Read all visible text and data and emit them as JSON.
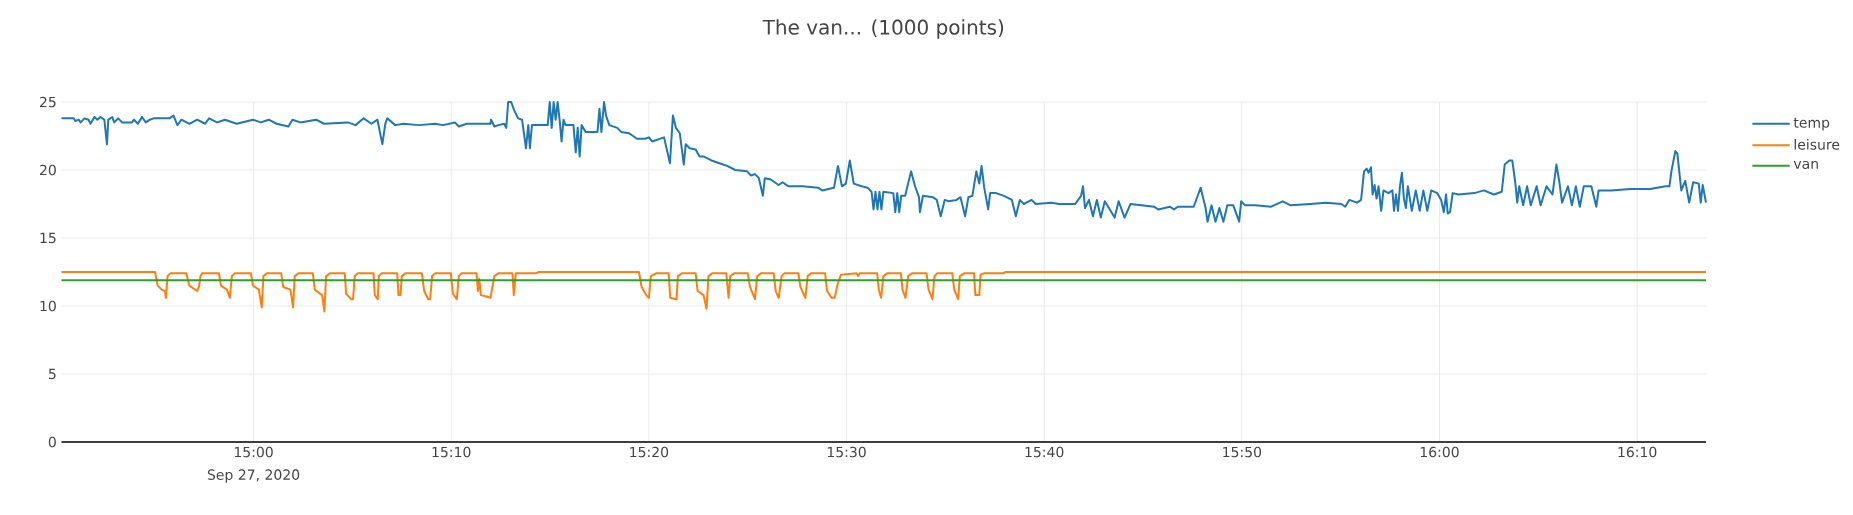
{
  "chart_data": {
    "type": "line",
    "title": "The van... (1000 points)",
    "annotations": [
      "Sep 27, 2020"
    ],
    "xlim": [
      "2020-09-27T14:50:17",
      "2020-09-27T16:13:29"
    ],
    "xticks": [
      {
        "value": "2020-09-27T15:00",
        "label": "15:00"
      },
      {
        "value": "2020-09-27T15:10",
        "label": "15:10"
      },
      {
        "value": "2020-09-27T15:20",
        "label": "15:20"
      },
      {
        "value": "2020-09-27T15:30",
        "label": "15:30"
      },
      {
        "value": "2020-09-27T15:40",
        "label": "15:40"
      },
      {
        "value": "2020-09-27T15:50",
        "label": "15:50"
      },
      {
        "value": "2020-09-27T16:00",
        "label": "16:00"
      },
      {
        "value": "2020-09-27T16:10",
        "label": "16:10"
      }
    ],
    "ylim": [
      0,
      25
    ],
    "yticks": [
      0,
      5,
      10,
      15,
      20,
      25
    ],
    "grid": true,
    "legend": "top right",
    "series": [
      {
        "name": "temp",
        "color": "#1f77b4",
        "x": [
          "2020-09-27T14:50:17",
          "2020-09-27T14:50:54",
          "2020-09-27T14:50:59",
          "2020-09-27T14:51:09",
          "2020-09-27T14:51:15",
          "2020-09-27T14:51:27",
          "2020-09-27T14:51:39",
          "2020-09-27T14:51:45",
          "2020-09-27T14:51:57",
          "2020-09-27T14:52:06",
          "2020-09-27T14:52:15",
          "2020-09-27T14:52:27",
          "2020-09-27T14:52:35",
          "2020-09-27T14:52:39",
          "2020-09-27T14:52:51",
          "2020-09-27T14:52:57",
          "2020-09-27T14:53:09",
          "2020-09-27T14:53:21",
          "2020-09-27T14:53:51",
          "2020-09-27T14:53:57",
          "2020-09-27T14:54:09",
          "2020-09-27T14:54:21",
          "2020-09-27T14:54:33",
          "2020-09-27T14:54:45",
          "2020-09-27T14:54:57",
          "2020-09-27T14:55:45",
          "2020-09-27T14:55:57",
          "2020-09-27T14:56:09",
          "2020-09-27T14:56:21",
          "2020-09-27T14:56:45",
          "2020-09-27T14:57:09",
          "2020-09-27T14:57:33",
          "2020-09-27T14:57:45",
          "2020-09-27T14:58:09",
          "2020-09-27T14:58:33",
          "2020-09-27T14:59:09",
          "2020-09-27T14:59:58",
          "2020-09-27T15:00:22",
          "2020-09-27T15:00:46",
          "2020-09-27T15:01:10",
          "2020-09-27T15:01:46",
          "2020-09-27T15:01:58",
          "2020-09-27T15:02:22",
          "2020-09-27T15:03:10",
          "2020-09-27T15:03:34",
          "2020-09-27T15:04:46",
          "2020-09-27T15:05:10",
          "2020-09-27T15:05:34",
          "2020-09-27T15:05:58",
          "2020-09-27T15:06:16",
          "2020-09-27T15:06:31",
          "2020-09-27T15:06:40",
          "2020-09-27T15:06:46",
          "2020-09-27T15:07:10",
          "2020-09-27T15:07:35",
          "2020-09-27T15:08:23",
          "2020-09-27T15:09:11",
          "2020-09-27T15:09:35",
          "2020-09-27T15:10:11",
          "2020-09-27T15:10:23",
          "2020-09-27T15:10:47",
          "2020-09-27T15:11:11",
          "2020-09-27T15:11:59",
          "2020-09-27T15:12:01",
          "2020-09-27T15:12:11",
          "2020-09-27T15:12:23",
          "2020-09-27T15:12:41",
          "2020-09-27T15:12:47",
          "2020-09-27T15:12:53",
          "2020-09-27T15:13:02",
          "2020-09-27T15:13:11",
          "2020-09-27T15:13:23",
          "2020-09-27T15:13:35",
          "2020-09-27T15:13:47",
          "2020-09-27T15:13:54",
          "2020-09-27T15:13:59",
          "2020-09-27T15:14:05",
          "2020-09-27T15:14:53",
          "2020-09-27T15:14:59",
          "2020-09-27T15:15:05",
          "2020-09-27T15:15:11",
          "2020-09-27T15:15:17",
          "2020-09-27T15:15:23",
          "2020-09-27T15:15:29",
          "2020-09-27T15:15:35",
          "2020-09-27T15:15:41",
          "2020-09-27T15:15:47",
          "2020-09-27T15:16:11",
          "2020-09-27T15:16:18",
          "2020-09-27T15:16:24",
          "2020-09-27T15:16:30",
          "2020-09-27T15:16:36",
          "2020-09-27T15:16:48",
          "2020-09-27T15:17:24",
          "2020-09-27T15:17:30",
          "2020-09-27T15:17:36",
          "2020-09-27T15:17:44",
          "2020-09-27T15:17:50",
          "2020-09-27T15:18:00",
          "2020-09-27T15:18:24",
          "2020-09-27T15:18:36",
          "2020-09-27T15:19:00",
          "2020-09-27T15:19:24",
          "2020-09-27T15:19:48",
          "2020-09-27T15:20:00",
          "2020-09-27T15:20:10",
          "2020-09-27T15:20:46",
          "2020-09-27T15:21:04",
          "2020-09-27T15:21:13",
          "2020-09-27T15:21:22",
          "2020-09-27T15:21:34",
          "2020-09-27T15:21:46",
          "2020-09-27T15:21:52",
          "2020-09-27T15:22:04",
          "2020-09-27T15:22:22",
          "2020-09-27T15:22:34",
          "2020-09-27T15:22:46",
          "2020-09-27T15:23:10",
          "2020-09-27T15:23:34",
          "2020-09-27T15:23:58",
          "2020-09-27T15:24:22",
          "2020-09-27T15:24:58",
          "2020-09-27T15:25:10",
          "2020-09-27T15:25:22",
          "2020-09-27T15:25:34",
          "2020-09-27T15:25:46",
          "2020-09-27T15:25:52",
          "2020-09-27T15:26:10",
          "2020-09-27T15:26:22",
          "2020-09-27T15:26:34",
          "2020-09-27T15:26:46",
          "2020-09-27T15:27:04",
          "2020-09-27T15:27:46",
          "2020-09-27T15:28:34",
          "2020-09-27T15:28:46",
          "2020-09-27T15:29:22",
          "2020-09-27T15:29:34",
          "2020-09-27T15:29:46",
          "2020-09-27T15:29:58",
          "2020-09-27T15:30:10",
          "2020-09-27T15:30:22",
          "2020-09-27T15:30:46",
          "2020-09-27T15:31:04",
          "2020-09-27T15:31:16",
          "2020-09-27T15:31:22",
          "2020-09-27T15:31:28",
          "2020-09-27T15:31:34",
          "2020-09-27T15:31:40",
          "2020-09-27T15:31:46",
          "2020-09-27T15:31:52",
          "2020-09-27T15:32:22",
          "2020-09-27T15:32:28",
          "2020-09-27T15:32:34",
          "2020-09-27T15:32:40",
          "2020-09-27T15:32:46",
          "2020-09-27T15:32:58",
          "2020-09-27T15:33:16",
          "2020-09-27T15:33:28",
          "2020-09-27T15:33:40",
          "2020-09-27T15:33:43",
          "2020-09-27T15:33:52",
          "2020-09-27T15:34:22",
          "2020-09-27T15:34:34",
          "2020-09-27T15:34:46",
          "2020-09-27T15:34:58",
          "2020-09-27T15:35:10",
          "2020-09-27T15:35:34",
          "2020-09-27T15:35:46",
          "2020-09-27T15:36:00",
          "2020-09-27T15:36:10",
          "2020-09-27T15:36:22",
          "2020-09-27T15:36:34",
          "2020-09-27T15:36:43",
          "2020-09-27T15:36:50",
          "2020-09-27T15:36:58",
          "2020-09-27T15:37:10",
          "2020-09-27T15:37:16",
          "2020-09-27T15:37:34",
          "2020-09-27T15:37:58",
          "2020-09-27T15:38:22",
          "2020-09-27T15:38:34",
          "2020-09-27T15:38:46",
          "2020-09-27T15:38:58",
          "2020-09-27T15:39:22",
          "2020-09-27T15:39:34",
          "2020-09-27T15:40:22",
          "2020-09-27T15:40:46",
          "2020-09-27T15:41:34",
          "2020-09-27T15:41:52",
          "2020-09-27T15:41:58",
          "2020-09-27T15:42:04",
          "2020-09-27T15:42:16",
          "2020-09-27T15:42:28",
          "2020-09-27T15:42:40",
          "2020-09-27T15:42:52",
          "2020-09-27T15:43:04",
          "2020-09-27T15:43:34",
          "2020-09-27T15:43:46",
          "2020-09-27T15:44:04",
          "2020-09-27T15:44:22",
          "2020-09-27T15:45:34",
          "2020-09-27T15:45:46",
          "2020-09-27T15:46:22",
          "2020-09-27T15:46:34",
          "2020-09-27T15:46:46",
          "2020-09-27T15:47:34",
          "2020-09-27T15:47:55",
          "2020-09-27T15:48:10",
          "2020-09-27T15:48:16",
          "2020-09-27T15:48:28",
          "2020-09-27T15:48:40",
          "2020-09-27T15:48:52",
          "2020-09-27T15:49:04",
          "2020-09-27T15:49:16",
          "2020-09-27T15:49:34",
          "2020-09-27T15:49:52",
          "2020-09-27T15:49:58",
          "2020-09-27T15:50:10",
          "2020-09-27T15:50:41",
          "2020-09-27T15:51:29",
          "2020-09-27T15:52:04",
          "2020-09-27T15:52:28",
          "2020-09-27T15:53:28",
          "2020-09-27T15:54:15",
          "2020-09-27T15:55:02",
          "2020-09-27T15:55:14",
          "2020-09-27T15:55:26",
          "2020-09-27T15:55:50",
          "2020-09-27T15:56:02",
          "2020-09-27T15:56:11",
          "2020-09-27T15:56:19",
          "2020-09-27T15:56:25",
          "2020-09-27T15:56:32",
          "2020-09-27T15:56:37",
          "2020-09-27T15:56:43",
          "2020-09-27T15:56:49",
          "2020-09-27T15:56:55",
          "2020-09-27T15:57:03",
          "2020-09-27T15:57:10",
          "2020-09-27T15:57:25",
          "2020-09-27T15:57:37",
          "2020-09-27T15:57:42",
          "2020-09-27T15:57:48",
          "2020-09-27T15:57:54",
          "2020-09-27T15:58:00",
          "2020-09-27T15:58:06",
          "2020-09-27T15:58:12",
          "2020-09-27T15:58:18",
          "2020-09-27T15:58:24",
          "2020-09-27T15:58:36",
          "2020-09-27T15:58:48",
          "2020-09-27T15:59:00",
          "2020-09-27T15:59:11",
          "2020-09-27T15:59:23",
          "2020-09-27T15:59:35",
          "2020-09-27T15:59:53",
          "2020-09-27T16:00:05",
          "2020-09-27T16:00:13",
          "2020-09-27T16:00:20",
          "2020-09-27T16:00:25",
          "2020-09-27T16:00:32",
          "2020-09-27T16:00:40",
          "2020-09-27T16:00:58",
          "2020-09-27T16:01:46",
          "2020-09-27T16:02:15",
          "2020-09-27T16:02:45",
          "2020-09-27T16:03:09",
          "2020-09-27T16:03:18",
          "2020-09-27T16:03:32",
          "2020-09-27T16:03:41",
          "2020-09-27T16:03:50",
          "2020-09-27T16:03:56",
          "2020-09-27T16:04:02",
          "2020-09-27T16:04:14",
          "2020-09-27T16:04:26",
          "2020-09-27T16:04:37",
          "2020-09-27T16:04:55",
          "2020-09-27T16:05:07",
          "2020-09-27T16:05:25",
          "2020-09-27T16:05:43",
          "2020-09-27T16:05:55",
          "2020-09-27T16:06:04",
          "2020-09-27T16:06:12",
          "2020-09-27T16:06:30",
          "2020-09-27T16:06:42",
          "2020-09-27T16:06:54",
          "2020-09-27T16:07:06",
          "2020-09-27T16:07:18",
          "2020-09-27T16:07:41",
          "2020-09-27T16:07:56",
          "2020-09-27T16:08:03",
          "2020-09-27T16:08:41",
          "2020-09-27T16:09:40",
          "2020-09-27T16:10:39",
          "2020-09-27T16:11:27",
          "2020-09-27T16:11:38",
          "2020-09-27T16:11:44",
          "2020-09-27T16:11:56",
          "2020-09-27T16:12:02",
          "2020-09-27T16:12:14",
          "2020-09-27T16:12:26",
          "2020-09-27T16:12:38",
          "2020-09-27T16:12:50",
          "2020-09-27T16:13:07",
          "2020-09-27T16:13:13",
          "2020-09-27T16:13:19",
          "2020-09-27T16:13:29"
        ],
        "values": [
          23.8,
          23.8,
          23.6,
          23.7,
          23.5,
          23.8,
          23.7,
          23.4,
          23.9,
          23.7,
          23.9,
          23.7,
          21.9,
          23.7,
          23.9,
          23.5,
          23.8,
          23.5,
          23.5,
          23.7,
          23.4,
          23.9,
          23.5,
          23.7,
          23.8,
          23.8,
          24.0,
          23.3,
          23.7,
          23.4,
          23.7,
          23.4,
          23.8,
          23.5,
          23.7,
          23.4,
          23.7,
          23.5,
          23.7,
          23.4,
          23.2,
          23.7,
          23.5,
          23.7,
          23.4,
          23.5,
          23.3,
          23.8,
          23.4,
          23.7,
          21.9,
          23.4,
          23.8,
          23.3,
          23.4,
          23.3,
          23.4,
          23.3,
          23.5,
          23.2,
          23.4,
          23.4,
          23.4,
          23.7,
          23.2,
          23.3,
          23.4,
          23.1,
          25.0,
          25.0,
          24.4,
          23.8,
          23.7,
          21.6,
          23.3,
          21.6,
          23.3,
          23.3,
          25.0,
          23.1,
          25.0,
          23.7,
          25.0,
          23.7,
          22.1,
          23.7,
          23.3,
          23.3,
          21.3,
          23.1,
          21.0,
          23.3,
          22.8,
          22.8,
          24.5,
          22.8,
          25.0,
          24.0,
          23.3,
          23.1,
          22.8,
          22.7,
          22.3,
          22.3,
          22.4,
          22.1,
          22.4,
          20.5,
          24.0,
          23.1,
          22.7,
          20.4,
          21.9,
          21.6,
          21.5,
          21.0,
          21.0,
          20.7,
          20.5,
          20.3,
          20.0,
          19.9,
          19.6,
          19.7,
          19.4,
          18.1,
          19.4,
          19.3,
          19.1,
          18.9,
          19.1,
          18.8,
          18.8,
          18.7,
          18.5,
          18.7,
          20.3,
          18.8,
          19.0,
          20.7,
          19.0,
          18.8,
          18.7,
          18.4,
          17.1,
          18.4,
          17.1,
          18.4,
          17.1,
          18.4,
          18.3,
          16.9,
          18.3,
          16.9,
          18.1,
          18.1,
          19.9,
          18.8,
          18.0,
          16.9,
          18.1,
          18.0,
          17.8,
          16.6,
          17.8,
          17.7,
          17.8,
          18.0,
          16.6,
          18.0,
          18.1,
          19.9,
          19.0,
          20.3,
          18.7,
          17.1,
          18.3,
          18.3,
          18.1,
          17.8,
          16.6,
          17.8,
          17.5,
          17.8,
          17.5,
          17.6,
          17.5,
          17.5,
          18.1,
          18.8,
          17.2,
          17.8,
          16.6,
          17.8,
          16.5,
          17.7,
          16.5,
          17.7,
          16.5,
          17.5,
          17.3,
          17.1,
          17.3,
          17.1,
          17.3,
          17.3,
          18.7,
          17.2,
          16.2,
          17.4,
          16.2,
          17.2,
          16.2,
          17.4,
          17.4,
          16.2,
          17.7,
          17.4,
          17.4,
          17.3,
          17.7,
          17.4,
          17.5,
          17.6,
          17.5,
          17.3,
          17.8,
          17.6,
          17.8,
          19.9,
          20.1,
          19.8,
          20.2,
          18.2,
          18.9,
          17.9,
          18.8,
          17.0,
          18.5,
          18.3,
          18.5,
          17.0,
          18.2,
          17.0,
          18.8,
          19.8,
          17.9,
          17.2,
          18.8,
          17.0,
          18.5,
          17.0,
          18.5,
          17.0,
          18.5,
          18.3,
          17.8,
          16.9,
          18.2,
          16.8,
          16.9,
          18.3,
          18.2,
          18.3,
          18.5,
          18.2,
          18.4,
          20.4,
          20.7,
          20.7,
          19.1,
          17.6,
          18.8,
          17.4,
          18.8,
          17.4,
          18.8,
          17.4,
          18.8,
          18.2,
          20.4,
          19.1,
          17.6,
          18.8,
          17.4,
          18.8,
          17.3,
          18.8,
          18.8,
          17.3,
          18.5,
          18.5,
          18.6,
          18.6,
          18.8,
          18.8,
          19.9,
          21.4,
          21.2,
          18.5,
          19.2,
          17.6,
          19.1,
          19.0,
          17.6,
          18.9,
          17.6
        ]
      },
      {
        "name": "leisure",
        "color": "#ff7f0e",
        "x": [
          "2020-09-27T14:50:17",
          "2020-09-27T14:55:01",
          "2020-09-27T14:55:09",
          "2020-09-27T14:55:21",
          "2020-09-27T14:55:31",
          "2020-09-27T14:55:34",
          "2020-09-27T14:55:39",
          "2020-09-27T14:55:47",
          "2020-09-27T14:56:36",
          "2020-09-27T14:56:45",
          "2020-09-27T14:57:03",
          "2020-09-27T14:57:09",
          "2020-09-27T14:57:15",
          "2020-09-27T14:57:19",
          "2020-09-27T14:57:24",
          "2020-09-27T14:58:15",
          "2020-09-27T14:58:21",
          "2020-09-27T14:58:39",
          "2020-09-27T14:58:48",
          "2020-09-27T14:58:54",
          "2020-09-27T14:59:03",
          "2020-09-27T14:59:52",
          "2020-09-27T14:59:58",
          "2020-09-27T15:00:16",
          "2020-09-27T15:00:25",
          "2020-09-27T15:00:30",
          "2020-09-27T15:00:40",
          "2020-09-27T15:01:24",
          "2020-09-27T15:01:30",
          "2020-09-27T15:01:52",
          "2020-09-27T15:02:00",
          "2020-09-27T15:02:05",
          "2020-09-27T15:02:16",
          "2020-09-27T15:03:00",
          "2020-09-27T15:03:06",
          "2020-09-27T15:03:28",
          "2020-09-27T15:03:35",
          "2020-09-27T15:03:40",
          "2020-09-27T15:03:52",
          "2020-09-27T15:04:37",
          "2020-09-27T15:04:41",
          "2020-09-27T15:04:56",
          "2020-09-27T15:05:02",
          "2020-09-27T15:05:07",
          "2020-09-27T15:05:16",
          "2020-09-27T15:06:04",
          "2020-09-27T15:06:08",
          "2020-09-27T15:06:17",
          "2020-09-27T15:06:20",
          "2020-09-27T15:06:28",
          "2020-09-27T15:07:16",
          "2020-09-27T15:07:20",
          "2020-09-27T15:07:26",
          "2020-09-27T15:07:30",
          "2020-09-27T15:07:41",
          "2020-09-27T15:08:31",
          "2020-09-27T15:08:38",
          "2020-09-27T15:08:50",
          "2020-09-27T15:08:56",
          "2020-09-27T15:09:02",
          "2020-09-27T15:09:11",
          "2020-09-27T15:09:59",
          "2020-09-27T15:10:05",
          "2020-09-27T15:10:17",
          "2020-09-27T15:10:23",
          "2020-09-27T15:10:31",
          "2020-09-27T15:11:17",
          "2020-09-27T15:11:21",
          "2020-09-27T15:11:25",
          "2020-09-27T15:11:30",
          "2020-09-27T15:11:47",
          "2020-09-27T15:11:59",
          "2020-09-27T15:12:11",
          "2020-09-27T15:12:23",
          "2020-09-27T15:13:06",
          "2020-09-27T15:13:10",
          "2020-09-27T15:13:16",
          "2020-09-27T15:14:17",
          "2020-09-27T15:14:26",
          "2020-09-27T15:19:30",
          "2020-09-27T15:19:38",
          "2020-09-27T15:19:52",
          "2020-09-27T15:20:00",
          "2020-09-27T15:20:06",
          "2020-09-27T15:20:22",
          "2020-09-27T15:21:00",
          "2020-09-27T15:21:05",
          "2020-09-27T15:21:24",
          "2020-09-27T15:21:28",
          "2020-09-27T15:21:40",
          "2020-09-27T15:22:22",
          "2020-09-27T15:22:28",
          "2020-09-27T15:22:46",
          "2020-09-27T15:22:55",
          "2020-09-27T15:23:01",
          "2020-09-27T15:23:12",
          "2020-09-27T15:23:55",
          "2020-09-27T15:24:02",
          "2020-09-27T15:24:07",
          "2020-09-27T15:24:19",
          "2020-09-27T15:25:00",
          "2020-09-27T15:25:07",
          "2020-09-27T15:25:22",
          "2020-09-27T15:25:29",
          "2020-09-27T15:25:40",
          "2020-09-27T15:26:19",
          "2020-09-27T15:26:25",
          "2020-09-27T15:26:34",
          "2020-09-27T15:26:43",
          "2020-09-27T15:26:51",
          "2020-09-27T15:27:34",
          "2020-09-27T15:27:40",
          "2020-09-27T15:27:55",
          "2020-09-27T15:28:02",
          "2020-09-27T15:28:12",
          "2020-09-27T15:28:55",
          "2020-09-27T15:29:01",
          "2020-09-27T15:29:15",
          "2020-09-27T15:29:24",
          "2020-09-27T15:29:33",
          "2020-09-27T15:29:43",
          "2020-09-27T15:30:31",
          "2020-09-27T15:30:35",
          "2020-09-27T15:30:40",
          "2020-09-27T15:31:33",
          "2020-09-27T15:31:38",
          "2020-09-27T15:31:45",
          "2020-09-27T15:31:52",
          "2020-09-27T15:32:03",
          "2020-09-27T15:32:45",
          "2020-09-27T15:32:50",
          "2020-09-27T15:32:59",
          "2020-09-27T15:33:07",
          "2020-09-27T15:33:19",
          "2020-09-27T15:34:03",
          "2020-09-27T15:34:09",
          "2020-09-27T15:34:21",
          "2020-09-27T15:34:27",
          "2020-09-27T15:34:35",
          "2020-09-27T15:35:21",
          "2020-09-27T15:35:27",
          "2020-09-27T15:35:39",
          "2020-09-27T15:35:44",
          "2020-09-27T15:35:57",
          "2020-09-27T15:36:27",
          "2020-09-27T15:36:31",
          "2020-09-27T15:36:43",
          "2020-09-27T15:36:47",
          "2020-09-27T15:36:57",
          "2020-09-27T15:37:55",
          "2020-09-27T15:38:03",
          "2020-09-27T16:13:29"
        ],
        "values": [
          12.5,
          12.5,
          11.5,
          11.2,
          11.1,
          10.6,
          12.2,
          12.4,
          12.4,
          11.5,
          11.2,
          11.1,
          11.5,
          12.2,
          12.4,
          12.4,
          11.5,
          11.2,
          10.6,
          12.2,
          12.4,
          12.4,
          11.5,
          11.2,
          9.9,
          12.2,
          12.4,
          12.4,
          11.4,
          11.2,
          9.9,
          12.2,
          12.4,
          12.4,
          11.2,
          10.8,
          9.6,
          12.2,
          12.4,
          12.4,
          10.9,
          10.5,
          10.5,
          12.2,
          12.4,
          12.4,
          10.8,
          10.5,
          12.2,
          12.4,
          12.4,
          10.8,
          10.8,
          12.2,
          12.4,
          12.4,
          11.1,
          10.5,
          10.5,
          12.2,
          12.4,
          12.4,
          10.9,
          10.5,
          12.2,
          12.4,
          12.4,
          11.1,
          12.0,
          10.8,
          10.7,
          10.6,
          12.2,
          12.4,
          12.4,
          10.8,
          12.4,
          12.4,
          12.5,
          12.5,
          11.4,
          10.8,
          10.6,
          12.2,
          12.4,
          12.4,
          10.6,
          10.5,
          12.2,
          12.4,
          12.4,
          11.1,
          10.8,
          9.8,
          12.2,
          12.4,
          12.4,
          10.6,
          12.2,
          12.4,
          12.4,
          11.4,
          10.5,
          12.2,
          12.4,
          12.4,
          11.1,
          10.6,
          12.2,
          12.4,
          12.4,
          11.4,
          10.6,
          12.2,
          12.4,
          12.4,
          11.1,
          10.6,
          10.6,
          11.6,
          12.3,
          12.4,
          12.2,
          12.4,
          12.4,
          11.2,
          10.6,
          12.2,
          12.4,
          12.4,
          11.2,
          10.6,
          12.2,
          12.4,
          12.4,
          11.2,
          10.5,
          12.2,
          12.4,
          12.4,
          11.2,
          10.5,
          12.2,
          12.4,
          12.4,
          10.8,
          10.8,
          12.3,
          12.4,
          12.4,
          12.5,
          12.5
        ]
      },
      {
        "name": "van",
        "color": "#2ca02c",
        "x": [
          "2020-09-27T14:50:17",
          "2020-09-27T16:13:29"
        ],
        "values": [
          11.9,
          11.9
        ]
      }
    ]
  }
}
